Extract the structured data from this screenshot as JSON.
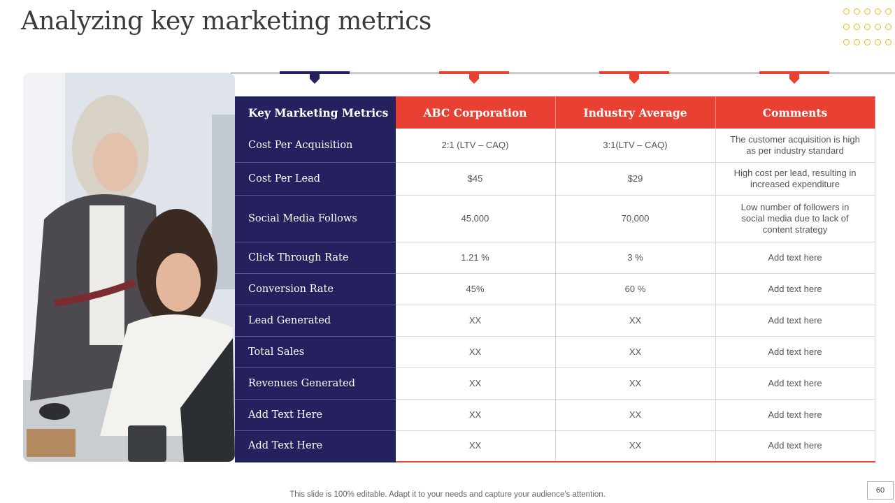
{
  "page": {
    "title": "Analyzing key marketing metrics",
    "footer_note": "This slide is 100% editable. Adapt it to your needs and capture your audience's attention.",
    "page_number": "60"
  },
  "colors": {
    "navy": "#25205e",
    "red": "#e84133",
    "dot_yellow": "#f2b71f"
  },
  "table": {
    "headers": [
      "Key Marketing Metrics",
      "ABC Corporation",
      "Industry Average",
      "Comments"
    ],
    "rows": [
      [
        "Cost Per Acquisition",
        "2:1 (LTV – CAQ)",
        "3:1(LTV  – CAQ)",
        "The customer acquisition is high as per industry standard"
      ],
      [
        "Cost Per Lead",
        "$45",
        "$29",
        "High cost per lead, resulting in increased expenditure"
      ],
      [
        "Social Media Follows",
        "45,000",
        "70,000",
        "Low number of followers in social media due to lack of content strategy"
      ],
      [
        "Click Through Rate",
        "1.21 %",
        "3 %",
        "Add text here"
      ],
      [
        "Conversion Rate",
        "45%",
        "60 %",
        "Add text here"
      ],
      [
        "Lead Generated",
        "XX",
        "XX",
        "Add text here"
      ],
      [
        "Total Sales",
        "XX",
        "XX",
        "Add text here"
      ],
      [
        "Revenues Generated",
        "XX",
        "XX",
        "Add text here"
      ],
      [
        "Add Text Here",
        "XX",
        "XX",
        "Add text here"
      ],
      [
        "Add Text Here",
        "XX",
        "XX",
        "Add text here"
      ]
    ]
  }
}
